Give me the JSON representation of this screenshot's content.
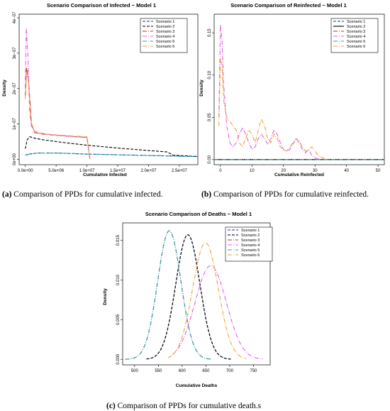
{
  "figure": {
    "captions": [
      {
        "tag": "(a)",
        "text": "Comparison of PPDs for cumulative infected."
      },
      {
        "tag": "(b)",
        "text": "Comparison of PPDs for cumulative reinfected."
      },
      {
        "tag": "(c)",
        "text": "Comparison of PPDs for cumulative death.s"
      }
    ]
  },
  "chart_data": [
    {
      "type": "line",
      "title": "Scenario Comparison of Infected − Model 1",
      "xlabel": "Cumulative Infected",
      "ylabel": "Density",
      "xlim": [
        -1000000,
        28000000
      ],
      "ylim": [
        -1.5e-08,
        4.1e-07
      ],
      "xticks": [
        0,
        5000000,
        10000000,
        15000000,
        20000000,
        25000000
      ],
      "xtick_labels": [
        "0.0e+00",
        "5.0e+06",
        "1.0e+07",
        "1.5e+07",
        "2.0e+07",
        "2.5e+07"
      ],
      "yticks": [
        0,
        1e-07,
        2e-07,
        3e-07,
        4e-07
      ],
      "ytick_labels": [
        "0e+00",
        "1e−07",
        "2e−07",
        "3e−07",
        "4e−07"
      ],
      "legend_position": "top-right",
      "series": [
        {
          "name": "Scenario 1",
          "color": "#1f2a9b",
          "dash": "4,2",
          "x": [
            0,
            500000,
            2000000,
            5000000,
            10000000,
            15000000,
            20000000,
            25000000,
            28000000
          ],
          "y": [
            1.2e-08,
            1.5e-08,
            1.8e-08,
            1.8e-08,
            1.5e-08,
            1.3e-08,
            1.1e-08,
            9e-09,
            8e-09
          ]
        },
        {
          "name": "Scenario 2",
          "color": "#000000",
          "dash": "4,2",
          "x": [
            0,
            300000,
            700000,
            1500000,
            3000000,
            6000000,
            10000000,
            15000000,
            20000000,
            23000000,
            24000000,
            28000000
          ],
          "y": [
            3e-08,
            5.5e-08,
            6.4e-08,
            6e-08,
            5.5e-08,
            4.8e-08,
            4e-08,
            3.2e-08,
            2.5e-08,
            2.1e-08,
            1.2e-08,
            8e-09
          ]
        },
        {
          "name": "Scenario 3",
          "color": "#cc2020",
          "dash": "6,2,1,2",
          "x": [
            0,
            200000,
            500000,
            1000000,
            1500000,
            2500000,
            5000000,
            8000000,
            10000000,
            10500000
          ],
          "y": [
            1.8e-07,
            2.6e-07,
            2.3e-07,
            1e-07,
            7.6e-08,
            7.2e-08,
            6.8e-08,
            6.4e-08,
            6.2e-08,
            0
          ]
        },
        {
          "name": "Scenario 4",
          "color": "#e060e0",
          "dash": "6,2,1,2",
          "x": [
            0,
            150000,
            400000,
            700000,
            1000000,
            1500000,
            2500000,
            5000000,
            8000000,
            10000000,
            10500000
          ],
          "y": [
            2e-07,
            3.72e-07,
            3e-07,
            1.4e-07,
            9.2e-08,
            8e-08,
            7.4e-08,
            6.8e-08,
            6.4e-08,
            6.2e-08,
            0
          ]
        },
        {
          "name": "Scenario 5",
          "color": "#20a8b0",
          "dash": "6,2,1,2",
          "x": [
            0,
            2000000,
            5000000,
            10000000,
            15000000,
            20000000,
            25000000,
            28000000
          ],
          "y": [
            1.2e-08,
            1.8e-08,
            1.8e-08,
            1.5e-08,
            1.3e-08,
            1.1e-08,
            9e-09,
            8e-09
          ]
        },
        {
          "name": "Scenario 6",
          "color": "#f0a040",
          "dash": "6,2,1,2",
          "x": [
            0,
            200000,
            500000,
            1000000,
            1500000,
            2500000,
            5000000,
            8000000,
            10000000,
            10500000
          ],
          "y": [
            1.7e-07,
            2.5e-07,
            2.2e-07,
            1e-07,
            7.8e-08,
            7.3e-08,
            6.9e-08,
            6.6e-08,
            6.4e-08,
            0
          ]
        }
      ]
    },
    {
      "type": "line",
      "title": "Scenario Comparison of Reinfected − Model 1",
      "xlabel": "Cumulative Reinfected",
      "ylabel": "Density",
      "xlim": [
        -2,
        52
      ],
      "ylim": [
        -0.006,
        0.172
      ],
      "xticks": [
        0,
        10,
        20,
        30,
        40,
        50
      ],
      "xtick_labels": [
        "0",
        "10",
        "20",
        "30",
        "40",
        "50"
      ],
      "yticks": [
        0,
        0.05,
        0.1,
        0.15
      ],
      "ytick_labels": [
        "0.00",
        "0.05",
        "0.10",
        "0.15"
      ],
      "legend_position": "top-right",
      "series": [
        {
          "name": "Scenario 1",
          "color": "#1f2a9b",
          "dash": "4,2",
          "x": [
            -2,
            52
          ],
          "y": [
            0,
            0
          ]
        },
        {
          "name": "Scenario 2",
          "color": "#000000",
          "dash": "",
          "x": [
            -2,
            52
          ],
          "y": [
            0,
            0
          ]
        },
        {
          "name": "Scenario 3",
          "color": "#cc2020",
          "dash": "6,2,1,2",
          "x": [
            -2,
            52
          ],
          "y": [
            0,
            0
          ]
        },
        {
          "name": "Scenario 4",
          "color": "#e060e0",
          "dash": "6,2,1,2",
          "x": [
            -0.5,
            0,
            0.5,
            1,
            2,
            3,
            4,
            5,
            6,
            7,
            8,
            9,
            10,
            11,
            12,
            13,
            14,
            15,
            16,
            17,
            18,
            19,
            20,
            21,
            22,
            23,
            24,
            25,
            26,
            27,
            28,
            29,
            30,
            32
          ],
          "y": [
            0.05,
            0.16,
            0.14,
            0.09,
            0.04,
            0.02,
            0.015,
            0.02,
            0.03,
            0.038,
            0.03,
            0.02,
            0.012,
            0.015,
            0.025,
            0.03,
            0.025,
            0.018,
            0.025,
            0.035,
            0.03,
            0.02,
            0.012,
            0.01,
            0.012,
            0.018,
            0.025,
            0.02,
            0.012,
            0.008,
            0.012,
            0.005,
            0.002,
            0
          ]
        },
        {
          "name": "Scenario 5",
          "color": "#20a8b0",
          "dash": "6,2,1,2",
          "x": [
            -2,
            52
          ],
          "y": [
            0,
            0
          ]
        },
        {
          "name": "Scenario 6",
          "color": "#f0a040",
          "dash": "6,2,1,2",
          "x": [
            -0.5,
            0,
            0.5,
            1,
            2,
            3,
            4,
            5,
            6,
            7,
            8,
            9,
            10,
            11,
            12,
            13,
            14,
            15,
            16,
            17,
            18,
            19,
            20,
            21,
            22,
            23,
            24,
            25,
            26,
            27,
            28,
            29,
            30,
            31,
            32,
            33,
            34
          ],
          "y": [
            0.04,
            0.12,
            0.11,
            0.07,
            0.05,
            0.045,
            0.04,
            0.035,
            0.02,
            0.015,
            0.025,
            0.035,
            0.03,
            0.02,
            0.035,
            0.048,
            0.04,
            0.025,
            0.02,
            0.03,
            0.025,
            0.015,
            0.012,
            0.01,
            0.015,
            0.02,
            0.025,
            0.022,
            0.015,
            0.01,
            0.012,
            0.015,
            0.01,
            0.005,
            0.003,
            0.001,
            0
          ]
        }
      ]
    },
    {
      "type": "line",
      "title": "Scenario Comparison of Deaths − Model 1",
      "xlabel": "Cumulative Deaths",
      "ylabel": "Density",
      "xlim": [
        475,
        785
      ],
      "ylim": [
        -0.0007,
        0.0172
      ],
      "xticks": [
        500,
        550,
        600,
        650,
        700,
        750
      ],
      "xtick_labels": [
        "500",
        "550",
        "600",
        "650",
        "700",
        "750"
      ],
      "yticks": [
        0,
        0.005,
        0.01,
        0.015
      ],
      "ytick_labels": [
        "0.000",
        "0.005",
        "0.010",
        "0.015"
      ],
      "legend_position": "top-right",
      "series": [
        {
          "name": "Scenario 1",
          "color": "#1f2a9b",
          "dash": "4,2",
          "mean": 612,
          "sd": 25.3,
          "peak": 0.0157,
          "x_from": 525,
          "x_to": 705
        },
        {
          "name": "Scenario 2",
          "color": "#000000",
          "dash": "4,2",
          "mean": 612,
          "sd": 25.3,
          "peak": 0.0157,
          "x_from": 525,
          "x_to": 705
        },
        {
          "name": "Scenario 3",
          "color": "#cc2020",
          "dash": "6,2,1,2",
          "mean": 573,
          "sd": 24.5,
          "peak": 0.0162,
          "x_from": 480,
          "x_to": 660
        },
        {
          "name": "Scenario 4",
          "color": "#e060e0",
          "dash": "6,2,1,2",
          "mean": 660,
          "sd": 33,
          "peak": 0.0118,
          "x_from": 580,
          "x_to": 770
        },
        {
          "name": "Scenario 5",
          "color": "#20a8b0",
          "dash": "6,2,1,2",
          "mean": 573,
          "sd": 24.5,
          "peak": 0.0162,
          "x_from": 480,
          "x_to": 660
        },
        {
          "name": "Scenario 6",
          "color": "#f0a040",
          "dash": "6,2,1,2",
          "mean": 649,
          "sd": 27,
          "peak": 0.0147,
          "x_from": 570,
          "x_to": 735
        }
      ]
    }
  ]
}
